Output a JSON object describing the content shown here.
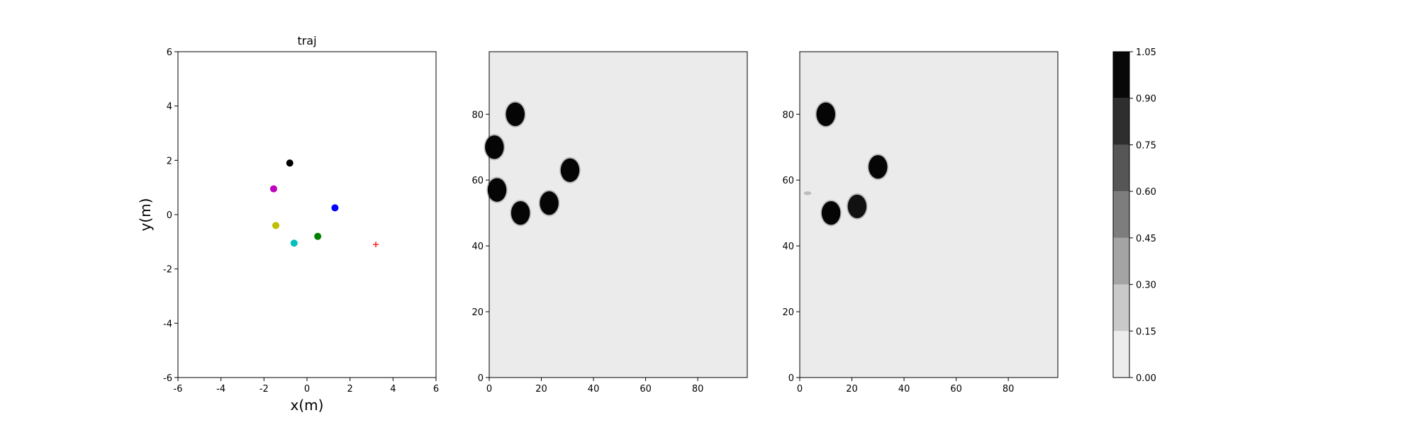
{
  "chart_data": [
    {
      "type": "scatter",
      "title": "traj",
      "xlabel": "x(m)",
      "ylabel": "y(m)",
      "xlim": [
        -6,
        6
      ],
      "ylim": [
        -6,
        6
      ],
      "xticks": [
        -6,
        -4,
        -2,
        0,
        2,
        4,
        6
      ],
      "yticks": [
        -6,
        -4,
        -2,
        0,
        2,
        4,
        6
      ],
      "grid": false,
      "points": [
        {
          "x": -0.8,
          "y": 1.9,
          "color": "#000000",
          "marker": "circle"
        },
        {
          "x": -1.55,
          "y": 0.95,
          "color": "#bf00bf",
          "marker": "circle"
        },
        {
          "x": 1.3,
          "y": 0.25,
          "color": "#0000ff",
          "marker": "circle"
        },
        {
          "x": -1.45,
          "y": -0.4,
          "color": "#bfbf00",
          "marker": "circle"
        },
        {
          "x": 0.5,
          "y": -0.8,
          "color": "#008000",
          "marker": "circle"
        },
        {
          "x": -0.6,
          "y": -1.05,
          "color": "#00bfbf",
          "marker": "circle"
        },
        {
          "x": 3.2,
          "y": -1.1,
          "color": "#ff0000",
          "marker": "plus"
        }
      ]
    },
    {
      "type": "heatmap",
      "xlim": [
        0,
        99
      ],
      "ylim": [
        0,
        99
      ],
      "xticks": [
        0,
        20,
        40,
        60,
        80
      ],
      "yticks": [
        0,
        20,
        40,
        60,
        80
      ],
      "background_value": 0.05,
      "blobs": [
        {
          "x": 10,
          "y": 80,
          "value": 1.0
        },
        {
          "x": 2,
          "y": 70,
          "value": 1.0
        },
        {
          "x": 3,
          "y": 57,
          "value": 1.0
        },
        {
          "x": 12,
          "y": 50,
          "value": 1.0
        },
        {
          "x": 23,
          "y": 53,
          "value": 1.0
        },
        {
          "x": 31,
          "y": 63,
          "value": 1.0
        }
      ]
    },
    {
      "type": "heatmap",
      "xlim": [
        0,
        99
      ],
      "ylim": [
        0,
        99
      ],
      "xticks": [
        0,
        20,
        40,
        60,
        80
      ],
      "yticks": [
        0,
        20,
        40,
        60,
        80
      ],
      "background_value": 0.05,
      "blobs": [
        {
          "x": 10,
          "y": 80,
          "value": 1.0
        },
        {
          "x": 30,
          "y": 64,
          "value": 1.0
        },
        {
          "x": 12,
          "y": 50,
          "value": 1.0
        },
        {
          "x": 22,
          "y": 52,
          "value": 0.95
        },
        {
          "x": 3,
          "y": 56,
          "value": 0.2
        }
      ]
    },
    {
      "type": "colorbar",
      "levels": [
        "0.00",
        "0.15",
        "0.30",
        "0.45",
        "0.60",
        "0.75",
        "0.90",
        "1.05"
      ],
      "band_colors": [
        "#ececec",
        "#c9c9c9",
        "#a4a4a4",
        "#7d7d7d",
        "#565656",
        "#2e2e2e",
        "#080808"
      ]
    }
  ]
}
